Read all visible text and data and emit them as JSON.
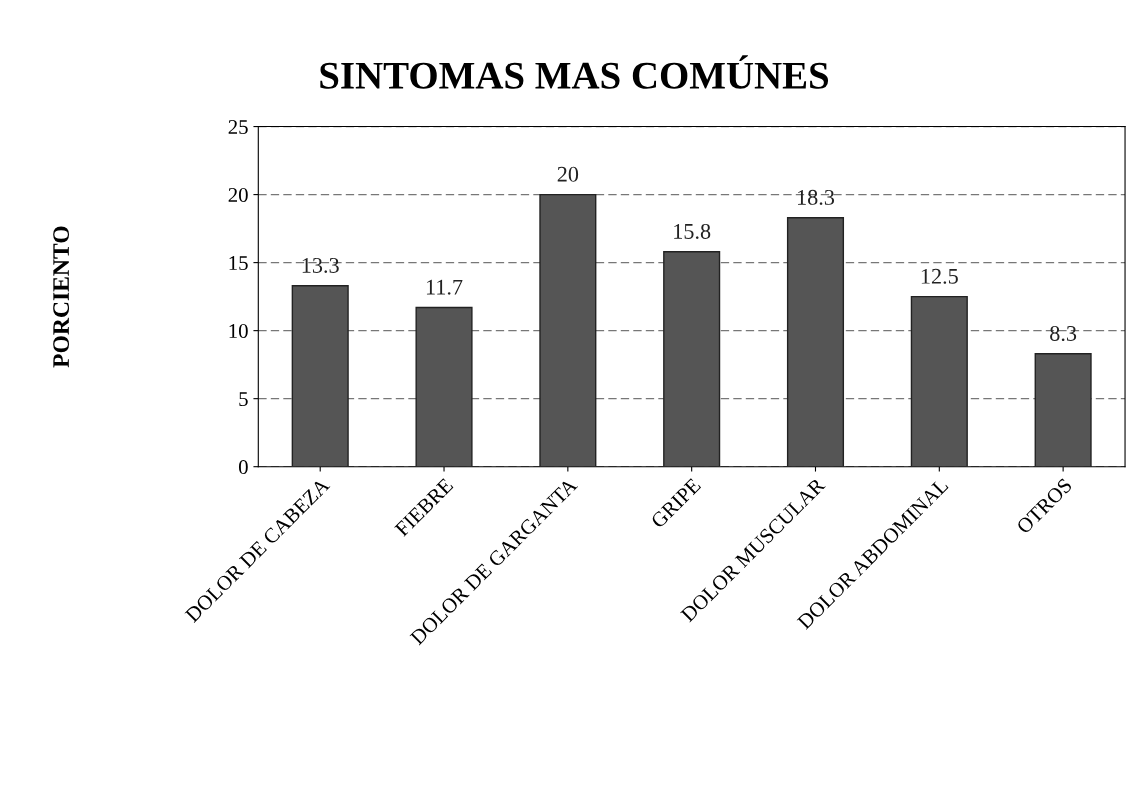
{
  "chart_data": {
    "type": "bar",
    "title": "SINTOMAS MAS COMÚNES",
    "ylabel": "PORCIENTO",
    "categories": [
      "DOLOR DE CABEZA",
      "FIEBRE",
      "DOLOR DE GARGANTA",
      "GRIPE",
      "DOLOR MUSCULAR",
      "DOLOR ABDOMINAL",
      "OTROS"
    ],
    "values": [
      13.3,
      11.7,
      20,
      15.8,
      18.3,
      12.5,
      8.3
    ],
    "color": "#555555",
    "ylim": [
      0,
      25
    ],
    "yticks": [
      0,
      5,
      10,
      15,
      20,
      25
    ],
    "grid": "y",
    "data_labels": true,
    "legend": false
  }
}
